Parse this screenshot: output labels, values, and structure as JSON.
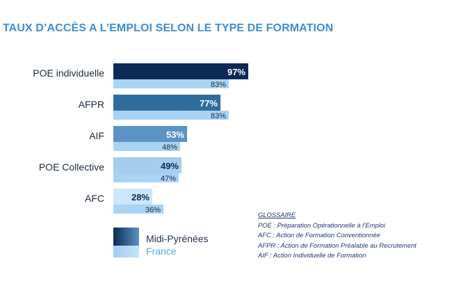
{
  "chart_data": {
    "type": "bar",
    "title": "TAUX D’ACCÈS A L’EMPLOI SELON LE TYPE DE FORMATION",
    "categories": [
      "POE individuelle",
      "AFPR",
      "AIF",
      "POE Collective",
      "AFC"
    ],
    "series": [
      {
        "name": "Midi-Pyrénées",
        "values": [
          97,
          77,
          53,
          49,
          28
        ],
        "labels": [
          "97%",
          "77%",
          "53%",
          "49%",
          "28%"
        ]
      },
      {
        "name": "France",
        "values": [
          83,
          83,
          48,
          47,
          36
        ],
        "labels": [
          "83%",
          "83%",
          "48%",
          "47%",
          "36%"
        ]
      }
    ],
    "main_colors": [
      "#0c2a55",
      "#2e6c9e",
      "#5b93c4",
      "#a6cdee",
      "#cde6fa"
    ],
    "secondary_color": "#a9d3f5",
    "orientation": "horizontal",
    "xlim": [
      0,
      100
    ],
    "grid": false,
    "legend_position": "bottom-left"
  },
  "glossary": {
    "heading": "GLOSSAIRE",
    "lines": [
      "POE : Préparation Opérationnelle  à l’Emploi",
      "AFC : Action de Formation Conventionnée",
      "AFPR : Action de Formation Préalable au Recrutement",
      "AIF : Action Individuelle de Formation"
    ]
  }
}
